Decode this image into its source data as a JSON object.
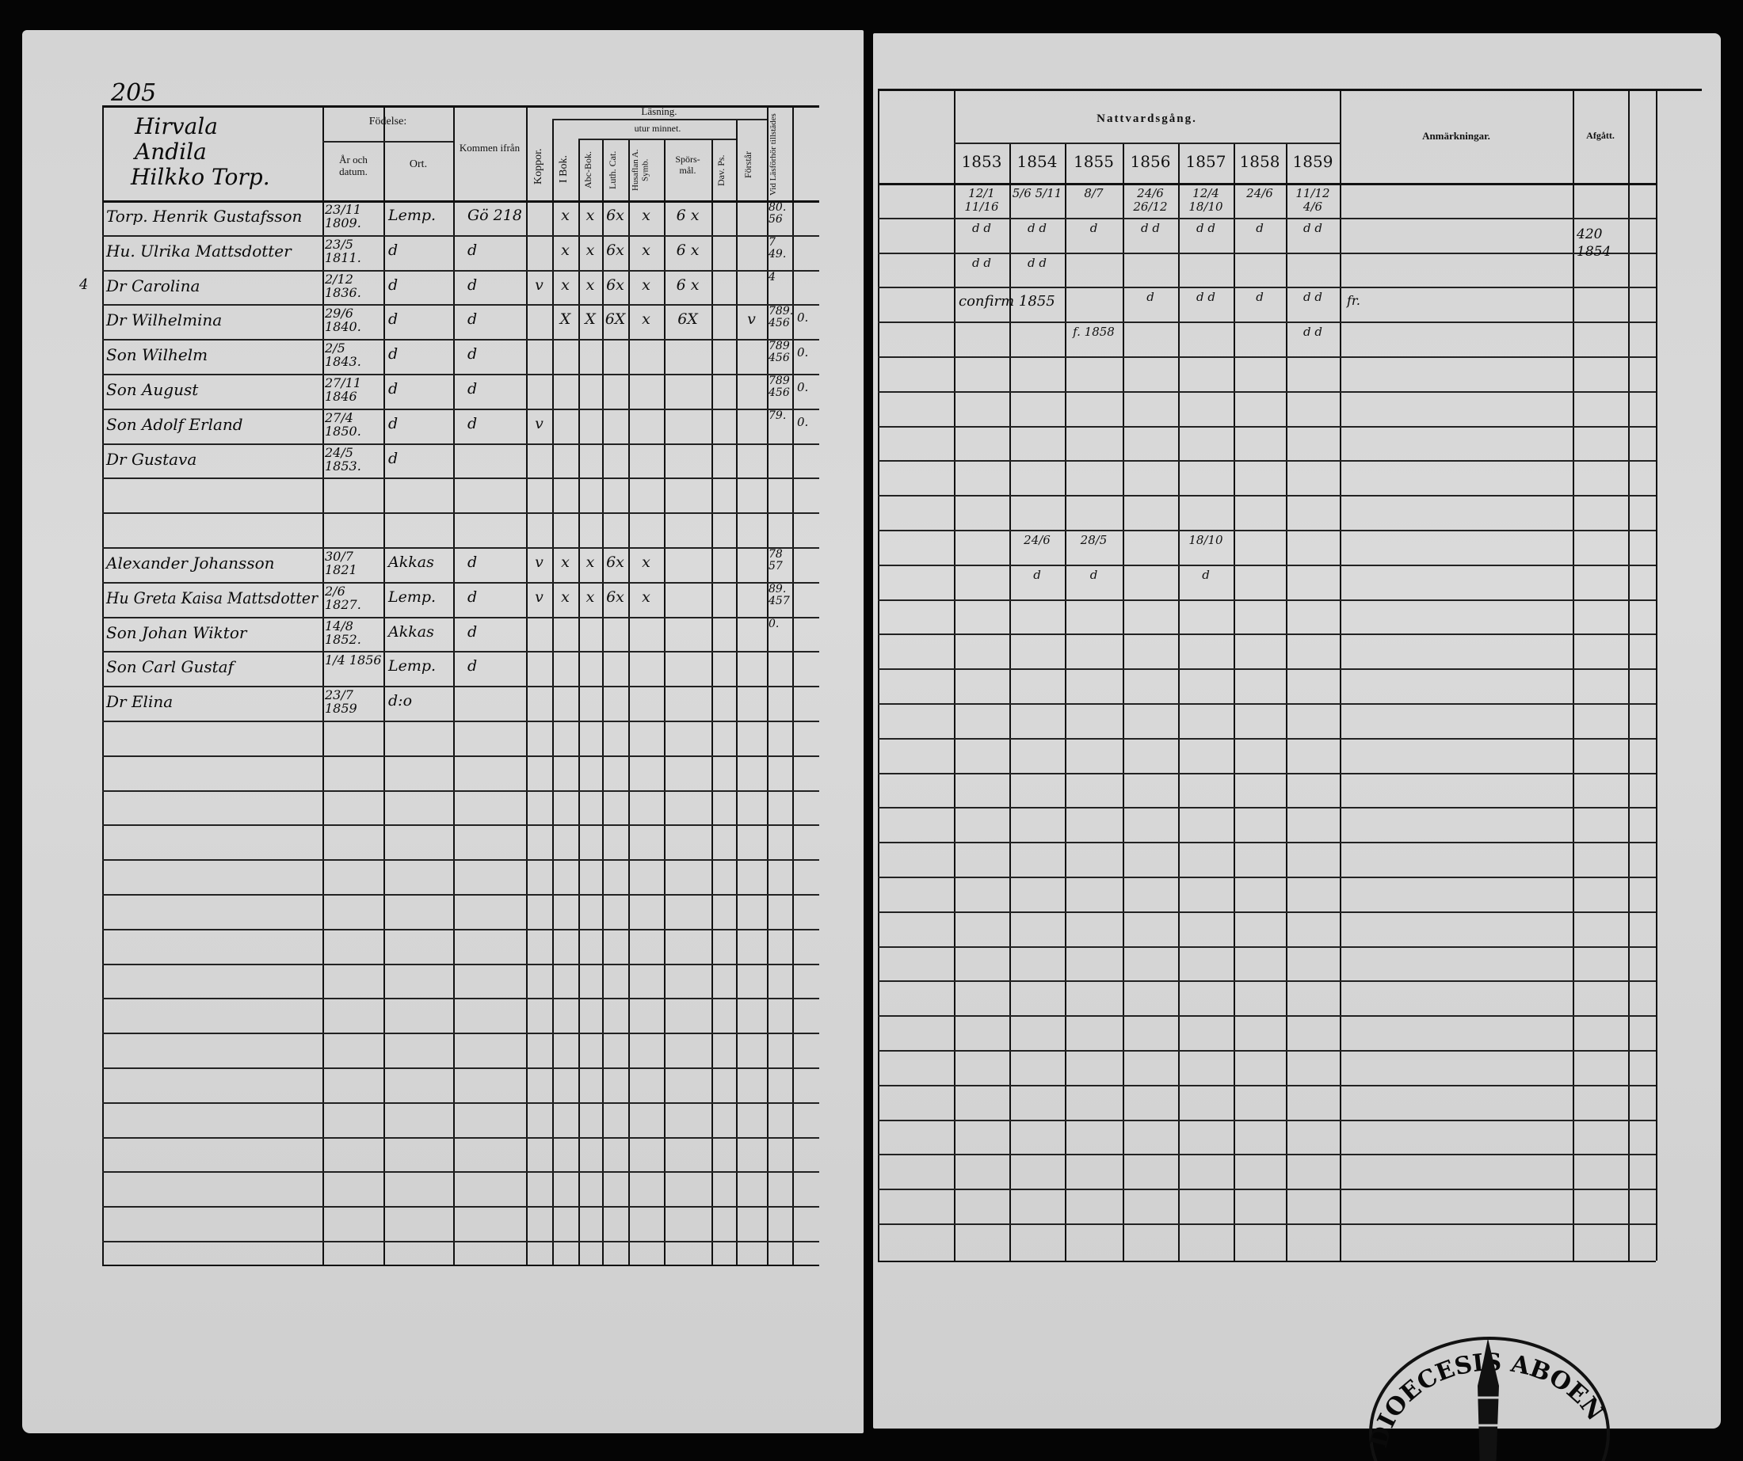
{
  "page_number": "205",
  "left_header": {
    "place": [
      "Hirvala",
      "Andila",
      "Hilkko Torp."
    ],
    "fodelse": "Födelse:",
    "ar_datum": "År och datum.",
    "ort": "Ort.",
    "kommen": "Kommen ifrån",
    "koppor": "Koppor.",
    "lasning": "Läsning.",
    "i_bok": "I Bok.",
    "utur_minnet": "utur minnet.",
    "abc": "Abc-Bok.",
    "luth": "Luth. Cat.",
    "husfl": "Husaflan A. Symb.",
    "spors": "Spörs- mål.",
    "dav": "Dav. Ps.",
    "forstar": "Förstår",
    "lasforhor": "Vid Läsförhör tillstädes"
  },
  "right_header": {
    "nattvard": "Nattvardsgång.",
    "years": [
      "1853",
      "1854",
      "1855",
      "1856",
      "1857",
      "1858",
      "1859"
    ],
    "anmarkningar": "Anmärkningar.",
    "afgatt": "Afgått."
  },
  "rows": [
    {
      "name": "Torp. Henrik Gustafsson",
      "date": "23/11 1809.",
      "ort": "Lemp.",
      "kommen": "Gö 218",
      "marks": [
        "",
        "x",
        "x",
        "6x",
        "x",
        "6 x",
        "",
        ""
      ],
      "lasf": "80. 56",
      "extra": "",
      "communion": [
        "12/1 11/16",
        "5/6 5/11",
        "8/7",
        "24/6 26/12",
        "12/4 18/10",
        "24/6",
        "11/12 4/6"
      ],
      "note": "",
      "afgatt": ""
    },
    {
      "name": "Hu. Ulrika Mattsdotter",
      "date": "23/5 1811.",
      "ort": "d",
      "kommen": "d",
      "marks": [
        "",
        "x",
        "x",
        "6x",
        "x",
        "6 x",
        "",
        ""
      ],
      "lasf": "7 49.",
      "extra": "",
      "communion": [
        "d d",
        "d d",
        "d",
        "d d",
        "d d",
        "d",
        "d d"
      ],
      "note": "",
      "afgatt": "420 1854"
    },
    {
      "name": "Dr Carolina",
      "date": "2/12 1836.",
      "ort": "d",
      "kommen": "d",
      "marks": [
        "v",
        "x",
        "x",
        "6x",
        "x",
        "6 x",
        "",
        ""
      ],
      "lasf": "4",
      "extra": "",
      "communion": [
        "d d",
        "d d",
        "",
        "",
        "",
        "",
        ""
      ],
      "note": "",
      "afgatt": "",
      "margin": "4"
    },
    {
      "name": "Dr Wilhelmina",
      "date": "29/6 1840.",
      "ort": "d",
      "kommen": "d",
      "marks": [
        "",
        "X",
        "X",
        "6X",
        "x",
        "6X",
        "",
        "v"
      ],
      "lasf": "789. 456",
      "extra": "0.",
      "communion": [
        "",
        "",
        "",
        "d",
        "d d",
        "d",
        "d d"
      ],
      "communion_note": "confirm 1855",
      "note": "fr.",
      "afgatt": ""
    },
    {
      "name": "Son Wilhelm",
      "date": "2/5 1843.",
      "ort": "d",
      "kommen": "d",
      "marks": [
        "",
        "",
        "",
        "",
        "",
        "",
        "",
        ""
      ],
      "lasf": "789 456",
      "extra": "0.",
      "communion": [
        "",
        "",
        "f. 1858",
        "",
        "",
        "",
        "d d"
      ],
      "note": "",
      "afgatt": ""
    },
    {
      "name": "Son August",
      "date": "27/11 1846",
      "ort": "d",
      "kommen": "d",
      "marks": [
        "",
        "",
        "",
        "",
        "",
        "",
        "",
        ""
      ],
      "lasf": "789 456",
      "extra": "0.",
      "communion": [
        "",
        "",
        "",
        "",
        "",
        "",
        ""
      ],
      "note": "",
      "afgatt": ""
    },
    {
      "name": "Son Adolf Erland",
      "date": "27/4 1850.",
      "ort": "d",
      "kommen": "d",
      "marks": [
        "v",
        "",
        "",
        "",
        "",
        "",
        "",
        ""
      ],
      "lasf": "79.",
      "extra": "0.",
      "communion": [
        "",
        "",
        "",
        "",
        "",
        "",
        ""
      ],
      "note": "",
      "afgatt": ""
    },
    {
      "name": "Dr Gustava",
      "date": "24/5 1853.",
      "ort": "d",
      "kommen": "",
      "marks": [
        "",
        "",
        "",
        "",
        "",
        "",
        "",
        ""
      ],
      "lasf": "",
      "extra": "",
      "communion": [
        "",
        "",
        "",
        "",
        "",
        "",
        ""
      ],
      "note": "",
      "afgatt": ""
    },
    {
      "name": "",
      "date": "",
      "ort": "",
      "kommen": "",
      "marks": [
        "",
        "",
        "",
        "",
        "",
        "",
        "",
        ""
      ],
      "lasf": "",
      "extra": "",
      "communion": [
        "",
        "",
        "",
        "",
        "",
        "",
        ""
      ],
      "note": "",
      "afgatt": ""
    },
    {
      "name": "",
      "date": "",
      "ort": "",
      "kommen": "",
      "marks": [
        "",
        "",
        "",
        "",
        "",
        "",
        "",
        ""
      ],
      "lasf": "",
      "extra": "",
      "communion": [
        "",
        "",
        "",
        "",
        "",
        "",
        ""
      ],
      "note": "",
      "afgatt": ""
    },
    {
      "name": "Alexander Johansson",
      "date": "30/7 1821",
      "ort": "Akkas",
      "kommen": "d",
      "marks": [
        "v",
        "x",
        "x",
        "6x",
        "x",
        "",
        "",
        ""
      ],
      "lasf": "78 57",
      "extra": "",
      "communion": [
        "",
        "24/6",
        "28/5",
        "",
        "18/10",
        "",
        ""
      ],
      "note": "",
      "afgatt": ""
    },
    {
      "name": "Hu Greta Kaisa Mattsdotter",
      "date": "2/6 1827.",
      "ort": "Lemp.",
      "kommen": "d",
      "marks": [
        "v",
        "x",
        "x",
        "6x",
        "x",
        "",
        "",
        ""
      ],
      "lasf": "89. 457",
      "extra": "",
      "communion": [
        "",
        "d",
        "d",
        "",
        "d",
        "",
        ""
      ],
      "note": "",
      "afgatt": ""
    },
    {
      "name": "Son Johan Wiktor",
      "date": "14/8 1852.",
      "ort": "Akkas",
      "kommen": "d",
      "marks": [
        "",
        "",
        "",
        "",
        "",
        "",
        "",
        ""
      ],
      "lasf": "0.",
      "extra": "",
      "communion": [
        "",
        "",
        "",
        "",
        "",
        "",
        ""
      ],
      "note": "",
      "afgatt": ""
    },
    {
      "name": "Son Carl Gustaf",
      "date": "1/4 1856",
      "ort": "Lemp.",
      "kommen": "d",
      "marks": [
        "",
        "",
        "",
        "",
        "",
        "",
        "",
        ""
      ],
      "lasf": "",
      "extra": "",
      "communion": [
        "",
        "",
        "",
        "",
        "",
        "",
        ""
      ],
      "note": "",
      "afgatt": ""
    },
    {
      "name": "Dr Elina",
      "date": "23/7 1859",
      "ort": "d:o",
      "kommen": "",
      "marks": [
        "",
        "",
        "",
        "",
        "",
        "",
        "",
        ""
      ],
      "lasf": "",
      "extra": "",
      "communion": [
        "",
        "",
        "",
        "",
        "",
        "",
        ""
      ],
      "note": "",
      "afgatt": ""
    }
  ],
  "stamp": {
    "text": "DIOECESIS ABOENSIS"
  },
  "colors": {
    "paper": "#d6d6d6",
    "ink": "#0a0a0a",
    "background": "#000000"
  }
}
